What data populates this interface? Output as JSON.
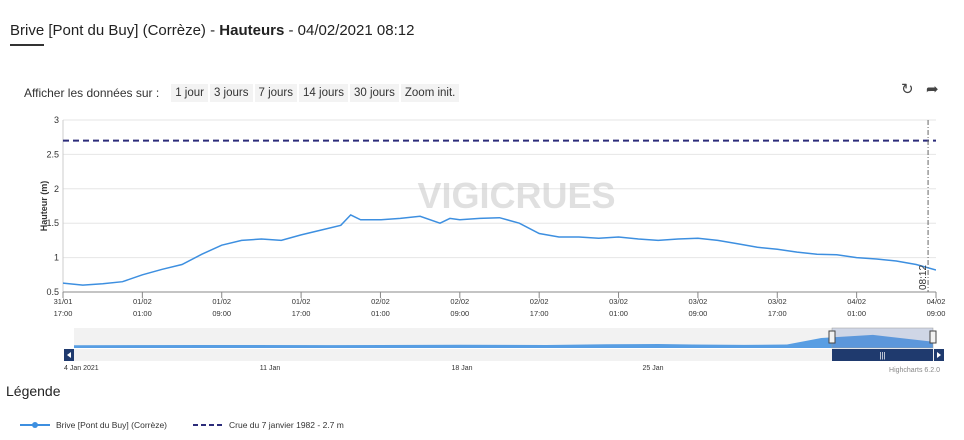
{
  "header": {
    "station": "Brive [Pont du Buy] (Corrèze)",
    "sep1": " - ",
    "metric": "Hauteurs",
    "sep2": " - ",
    "timestamp": "04/02/2021 08:12"
  },
  "range_selector": {
    "label": "Afficher les données sur :",
    "buttons": [
      "1 jour",
      "3 jours",
      "7 jours",
      "14 jours",
      "30 jours",
      "Zoom init."
    ]
  },
  "toolbar": {
    "refresh_icon": "refresh-icon",
    "share_icon": "share-arrow-icon"
  },
  "watermark": "VIGICRUES",
  "chart_data": {
    "type": "line",
    "ylabel": "Hauteur (m)",
    "ylim": [
      0.5,
      3
    ],
    "yticks": [
      "0.5",
      "1",
      "1.5",
      "2",
      "2.5",
      "3"
    ],
    "x_range_hours": [
      0,
      88
    ],
    "xticks": [
      {
        "d": "31/01",
        "t": "17:00"
      },
      {
        "d": "01/02",
        "t": "01:00"
      },
      {
        "d": "01/02",
        "t": "09:00"
      },
      {
        "d": "01/02",
        "t": "17:00"
      },
      {
        "d": "02/02",
        "t": "01:00"
      },
      {
        "d": "02/02",
        "t": "09:00"
      },
      {
        "d": "02/02",
        "t": "17:00"
      },
      {
        "d": "03/02",
        "t": "01:00"
      },
      {
        "d": "03/02",
        "t": "09:00"
      },
      {
        "d": "03/02",
        "t": "17:00"
      },
      {
        "d": "04/02",
        "t": "01:00"
      },
      {
        "d": "04/02",
        "t": "09:00"
      }
    ],
    "grid": true,
    "legend_position": "bottom-left",
    "series": [
      {
        "name": "Brive [Pont du Buy] (Corrèze)",
        "color": "#3d8fe0",
        "points": [
          [
            -2,
            0.62
          ],
          [
            0,
            0.63
          ],
          [
            2,
            0.6
          ],
          [
            4,
            0.62
          ],
          [
            6,
            0.65
          ],
          [
            8,
            0.75
          ],
          [
            10,
            0.83
          ],
          [
            12,
            0.9
          ],
          [
            14,
            1.05
          ],
          [
            16,
            1.18
          ],
          [
            18,
            1.25
          ],
          [
            20,
            1.27
          ],
          [
            22,
            1.25
          ],
          [
            24,
            1.33
          ],
          [
            26,
            1.4
          ],
          [
            28,
            1.47
          ],
          [
            29,
            1.62
          ],
          [
            30,
            1.55
          ],
          [
            32,
            1.55
          ],
          [
            34,
            1.57
          ],
          [
            36,
            1.6
          ],
          [
            38,
            1.5
          ],
          [
            39,
            1.57
          ],
          [
            40,
            1.55
          ],
          [
            42,
            1.57
          ],
          [
            44,
            1.58
          ],
          [
            46,
            1.5
          ],
          [
            48,
            1.35
          ],
          [
            50,
            1.3
          ],
          [
            52,
            1.3
          ],
          [
            54,
            1.28
          ],
          [
            56,
            1.3
          ],
          [
            58,
            1.27
          ],
          [
            60,
            1.25
          ],
          [
            62,
            1.27
          ],
          [
            64,
            1.28
          ],
          [
            66,
            1.25
          ],
          [
            68,
            1.2
          ],
          [
            70,
            1.15
          ],
          [
            72,
            1.12
          ],
          [
            74,
            1.08
          ],
          [
            76,
            1.05
          ],
          [
            78,
            1.04
          ],
          [
            80,
            1.0
          ],
          [
            82,
            0.98
          ],
          [
            84,
            0.95
          ],
          [
            86,
            0.9
          ],
          [
            88,
            0.82
          ]
        ]
      },
      {
        "name": "Crue du 7 janvier 1982 - 2.7 m",
        "color": "#2c2c7a",
        "value": 2.7
      }
    ],
    "current_time_label": "08:12",
    "current_time_hour": 87.2
  },
  "navigator": {
    "labels": [
      "4 Jan 2021",
      "11 Jan",
      "18 Jan",
      "25 Jan"
    ],
    "credit": "Highcharts 6.2.0"
  },
  "legend": {
    "title": "Légende",
    "items": [
      "Brive [Pont du Buy] (Corrèze)",
      "Crue du 7 janvier 1982 - 2.7 m"
    ]
  }
}
